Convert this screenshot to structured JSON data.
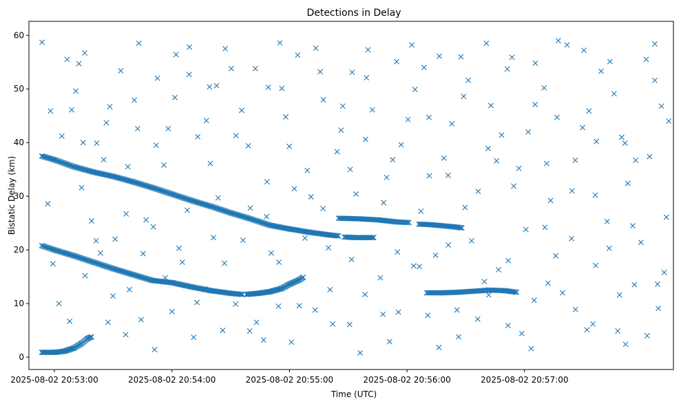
{
  "chart_data": {
    "type": "scatter",
    "title": "Detections in Delay",
    "xlabel": "Time (UTC)",
    "ylabel": "Bistatic Delay (km)",
    "marker": "x",
    "color": "#1f77b4",
    "grid": false,
    "x_units": "seconds after 2025-08-02 20:52:00 UTC",
    "xlim": [
      47,
      376
    ],
    "ylim": [
      -2.3,
      62.6
    ],
    "x_ticks": [
      {
        "value": 60,
        "label": "2025-08-02 20:53:00"
      },
      {
        "value": 120,
        "label": "2025-08-02 20:54:00"
      },
      {
        "value": 180,
        "label": "2025-08-02 20:55:00"
      },
      {
        "value": 240,
        "label": "2025-08-02 20:56:00"
      },
      {
        "value": 300,
        "label": "2025-08-02 20:57:00"
      }
    ],
    "y_ticks": [
      {
        "value": 0,
        "label": "0"
      },
      {
        "value": 10,
        "label": "10"
      },
      {
        "value": 20,
        "label": "20"
      },
      {
        "value": 30,
        "label": "30"
      },
      {
        "value": 40,
        "label": "40"
      },
      {
        "value": 50,
        "label": "50"
      },
      {
        "value": 60,
        "label": "60"
      }
    ],
    "tracks": [
      {
        "name": "track-a",
        "points": [
          [
            53.5,
            37.5
          ],
          [
            60,
            36.8
          ],
          [
            70,
            35.5
          ],
          [
            80,
            34.5
          ],
          [
            90,
            33.7
          ],
          [
            100,
            32.7
          ],
          [
            110,
            31.6
          ],
          [
            120,
            30.4
          ],
          [
            130,
            29.2
          ],
          [
            140,
            28.1
          ],
          [
            150,
            26.9
          ],
          [
            160,
            25.8
          ],
          [
            170,
            24.6
          ],
          [
            180,
            23.9
          ],
          [
            190,
            23.3
          ],
          [
            200,
            22.8
          ],
          [
            205,
            22.6
          ]
        ],
        "step": 0.55
      },
      {
        "name": "track-b",
        "points": [
          [
            53.5,
            20.8
          ],
          [
            60,
            20.0
          ],
          [
            70,
            18.9
          ],
          [
            80,
            17.7
          ],
          [
            90,
            16.5
          ],
          [
            100,
            15.4
          ],
          [
            110,
            14.3
          ],
          [
            120,
            13.9
          ],
          [
            130,
            13.1
          ],
          [
            140,
            12.4
          ],
          [
            150,
            11.9
          ],
          [
            156,
            11.7
          ]
        ],
        "step": 0.55
      },
      {
        "name": "track-c",
        "points": [
          [
            158,
            11.7
          ],
          [
            164,
            11.9
          ],
          [
            170,
            12.2
          ],
          [
            176,
            12.8
          ],
          [
            180,
            13.6
          ],
          [
            185,
            14.4
          ],
          [
            187,
            14.9
          ]
        ],
        "step": 0.45
      },
      {
        "name": "track-d",
        "points": [
          [
            53.5,
            0.9
          ],
          [
            60,
            0.9
          ],
          [
            65,
            1.1
          ],
          [
            70,
            1.7
          ],
          [
            74,
            2.6
          ],
          [
            77,
            3.5
          ],
          [
            79,
            3.8
          ]
        ],
        "step": 0.45
      },
      {
        "name": "track-e",
        "points": [
          [
            205,
            25.9
          ],
          [
            215,
            25.8
          ],
          [
            225,
            25.6
          ],
          [
            235,
            25.2
          ],
          [
            241,
            25.1
          ]
        ],
        "step": 0.6
      },
      {
        "name": "track-f",
        "points": [
          [
            208,
            22.4
          ],
          [
            213,
            22.3
          ],
          [
            218,
            22.3
          ],
          [
            223,
            22.3
          ]
        ],
        "step": 0.6
      },
      {
        "name": "track-g",
        "points": [
          [
            246,
            24.8
          ],
          [
            252,
            24.7
          ],
          [
            258,
            24.5
          ],
          [
            264,
            24.3
          ],
          [
            268,
            24.1
          ]
        ],
        "step": 0.55
      },
      {
        "name": "track-h",
        "points": [
          [
            250,
            12.0
          ],
          [
            258,
            12.0
          ],
          [
            266,
            12.1
          ],
          [
            274,
            12.3
          ],
          [
            282,
            12.5
          ],
          [
            290,
            12.4
          ],
          [
            296,
            12.1
          ]
        ],
        "step": 0.6
      }
    ],
    "scatter_points": [
      [
        53.7,
        58.7
      ],
      [
        58.0,
        45.9
      ],
      [
        66.5,
        55.5
      ],
      [
        73.9,
        31.6
      ],
      [
        70.9,
        49.6
      ],
      [
        74.7,
        40.0
      ],
      [
        75.7,
        15.2
      ],
      [
        81.6,
        39.9
      ],
      [
        83.5,
        19.4
      ],
      [
        88.3,
        46.7
      ],
      [
        87.4,
        6.5
      ],
      [
        96.6,
        26.7
      ],
      [
        93.9,
        53.4
      ],
      [
        98.3,
        12.6
      ],
      [
        102.5,
        42.6
      ],
      [
        104.3,
        7.0
      ],
      [
        110.5,
        24.3
      ],
      [
        112.6,
        52.0
      ],
      [
        115.9,
        35.8
      ],
      [
        120.0,
        8.5
      ],
      [
        121.5,
        48.4
      ],
      [
        125.3,
        17.7
      ],
      [
        128.9,
        57.8
      ],
      [
        133.2,
        41.1
      ],
      [
        136.9,
        12.7
      ],
      [
        139.2,
        50.4
      ],
      [
        143.6,
        29.7
      ],
      [
        145.9,
        5.0
      ],
      [
        150.3,
        53.8
      ],
      [
        156.3,
        21.8
      ],
      [
        159.0,
        39.4
      ],
      [
        163.2,
        6.5
      ],
      [
        169.2,
        50.3
      ],
      [
        168.5,
        32.7
      ],
      [
        174.6,
        17.7
      ],
      [
        178.1,
        44.8
      ],
      [
        181.0,
        2.8
      ],
      [
        184.2,
        56.3
      ],
      [
        189.1,
        34.8
      ],
      [
        193.1,
        8.8
      ],
      [
        197.3,
        48.0
      ],
      [
        199.9,
        20.4
      ],
      [
        204.3,
        38.3
      ],
      [
        210.7,
        6.1
      ],
      [
        212.0,
        53.1
      ],
      [
        214.0,
        30.4
      ],
      [
        218.6,
        11.7
      ],
      [
        222.3,
        46.1
      ],
      [
        228.1,
        28.8
      ],
      [
        231.1,
        2.9
      ],
      [
        234.7,
        55.1
      ],
      [
        237.0,
        39.6
      ],
      [
        243.4,
        17.0
      ],
      [
        244.1,
        49.9
      ],
      [
        250.6,
        7.8
      ],
      [
        251.4,
        33.8
      ],
      [
        256.5,
        56.1
      ],
      [
        261.1,
        20.9
      ],
      [
        262.9,
        43.5
      ],
      [
        266.4,
        3.8
      ],
      [
        271.3,
        51.6
      ],
      [
        276.3,
        30.9
      ],
      [
        279.5,
        14.1
      ],
      [
        282.8,
        46.9
      ],
      [
        285.7,
        36.6
      ],
      [
        291.6,
        5.9
      ],
      [
        293.6,
        55.9
      ],
      [
        300.7,
        23.8
      ],
      [
        301.9,
        42.0
      ],
      [
        304.9,
        10.6
      ],
      [
        310.0,
        50.2
      ],
      [
        313.3,
        29.2
      ],
      [
        315.9,
        18.9
      ],
      [
        321.7,
        58.2
      ],
      [
        325.9,
        36.7
      ],
      [
        326.0,
        8.9
      ],
      [
        332.9,
        45.9
      ],
      [
        336.3,
        17.1
      ],
      [
        339.1,
        53.3
      ],
      [
        342.2,
        25.3
      ],
      [
        347.6,
        4.9
      ],
      [
        349.6,
        41.0
      ],
      [
        352.7,
        32.4
      ],
      [
        356.1,
        13.5
      ],
      [
        362.1,
        55.5
      ],
      [
        363.8,
        37.4
      ],
      [
        368.3,
        9.1
      ],
      [
        369.9,
        46.8
      ],
      [
        372.4,
        26.1
      ],
      [
        59.2,
        17.4
      ],
      [
        62.3,
        10.0
      ],
      [
        68.8,
        46.1
      ],
      [
        72.5,
        54.7
      ],
      [
        79.0,
        25.4
      ],
      [
        85.2,
        36.8
      ],
      [
        91.0,
        22.0
      ],
      [
        96.4,
        4.2
      ],
      [
        100.8,
        47.9
      ],
      [
        105.3,
        19.3
      ],
      [
        112.0,
        39.5
      ],
      [
        116.6,
        14.8
      ],
      [
        122.1,
        56.4
      ],
      [
        127.8,
        27.4
      ],
      [
        131.1,
        3.7
      ],
      [
        137.6,
        44.1
      ],
      [
        141.2,
        22.3
      ],
      [
        147.2,
        57.5
      ],
      [
        152.5,
        9.9
      ],
      [
        155.6,
        46.0
      ],
      [
        160.0,
        27.8
      ],
      [
        166.8,
        3.2
      ],
      [
        170.7,
        19.4
      ],
      [
        175.1,
        58.6
      ],
      [
        179.9,
        39.3
      ],
      [
        185.0,
        9.6
      ],
      [
        191.0,
        29.9
      ],
      [
        195.7,
        53.2
      ],
      [
        200.7,
        12.6
      ],
      [
        206.4,
        42.3
      ],
      [
        211.0,
        35.0
      ],
      [
        216.1,
        0.8
      ],
      [
        219.3,
        52.1
      ],
      [
        226.4,
        14.8
      ],
      [
        229.6,
        33.5
      ],
      [
        235.6,
        8.4
      ],
      [
        240.5,
        44.3
      ],
      [
        247.1,
        27.2
      ],
      [
        248.7,
        54.0
      ],
      [
        254.6,
        19.0
      ],
      [
        258.8,
        37.1
      ],
      [
        265.5,
        8.8
      ],
      [
        268.9,
        48.6
      ],
      [
        273.0,
        21.7
      ],
      [
        280.5,
        58.5
      ],
      [
        281.7,
        11.6
      ],
      [
        288.3,
        41.4
      ],
      [
        291.7,
        18.0
      ],
      [
        297.1,
        35.2
      ],
      [
        303.4,
        1.6
      ],
      [
        305.5,
        54.8
      ],
      [
        310.4,
        24.2
      ],
      [
        316.6,
        44.7
      ],
      [
        319.4,
        12.0
      ],
      [
        324.2,
        31.0
      ],
      [
        330.3,
        57.2
      ],
      [
        334.9,
        6.2
      ],
      [
        336.7,
        40.2
      ],
      [
        343.2,
        20.3
      ],
      [
        345.7,
        49.1
      ],
      [
        351.6,
        2.4
      ],
      [
        356.7,
        36.7
      ],
      [
        359.4,
        21.4
      ],
      [
        366.5,
        58.4
      ],
      [
        367.9,
        13.6
      ],
      [
        373.6,
        44.0
      ],
      [
        56.6,
        28.6
      ],
      [
        63.8,
        41.2
      ],
      [
        67.8,
        6.7
      ],
      [
        75.5,
        56.7
      ],
      [
        81.3,
        21.7
      ],
      [
        86.5,
        43.7
      ],
      [
        89.9,
        11.4
      ],
      [
        97.5,
        35.5
      ],
      [
        103.1,
        58.5
      ],
      [
        106.8,
        25.6
      ],
      [
        111.1,
        1.4
      ],
      [
        118.1,
        42.6
      ],
      [
        123.6,
        20.3
      ],
      [
        128.8,
        52.7
      ],
      [
        132.8,
        10.2
      ],
      [
        139.6,
        36.1
      ],
      [
        142.8,
        50.6
      ],
      [
        146.8,
        17.5
      ],
      [
        152.7,
        41.3
      ],
      [
        159.7,
        4.9
      ],
      [
        162.6,
        53.8
      ],
      [
        168.3,
        26.2
      ],
      [
        174.4,
        9.5
      ],
      [
        176.1,
        50.1
      ],
      [
        182.5,
        31.4
      ],
      [
        187.9,
        22.2
      ],
      [
        193.4,
        57.6
      ],
      [
        197.1,
        27.7
      ],
      [
        202.1,
        6.2
      ],
      [
        207.2,
        46.8
      ],
      [
        211.7,
        18.2
      ],
      [
        218.8,
        40.6
      ],
      [
        220.1,
        57.3
      ],
      [
        227.7,
        8.0
      ],
      [
        232.7,
        36.8
      ],
      [
        235.1,
        19.6
      ],
      [
        242.4,
        58.2
      ],
      [
        246.3,
        16.9
      ],
      [
        251.2,
        44.7
      ],
      [
        256.3,
        1.8
      ],
      [
        261.0,
        33.9
      ],
      [
        267.5,
        56.0
      ],
      [
        269.6,
        27.9
      ],
      [
        276.1,
        7.1
      ],
      [
        281.4,
        38.9
      ],
      [
        286.7,
        16.3
      ],
      [
        291.2,
        53.7
      ],
      [
        294.5,
        31.9
      ],
      [
        298.6,
        4.4
      ],
      [
        305.4,
        47.1
      ],
      [
        311.3,
        36.1
      ],
      [
        312.0,
        13.8
      ],
      [
        317.2,
        59.0
      ],
      [
        324.0,
        22.1
      ],
      [
        329.6,
        42.8
      ],
      [
        331.8,
        5.1
      ],
      [
        336.1,
        30.2
      ],
      [
        343.6,
        55.1
      ],
      [
        348.5,
        11.6
      ],
      [
        351.3,
        39.9
      ],
      [
        355.2,
        24.5
      ],
      [
        362.6,
        4.0
      ],
      [
        366.5,
        51.6
      ],
      [
        371.3,
        15.8
      ]
    ]
  }
}
